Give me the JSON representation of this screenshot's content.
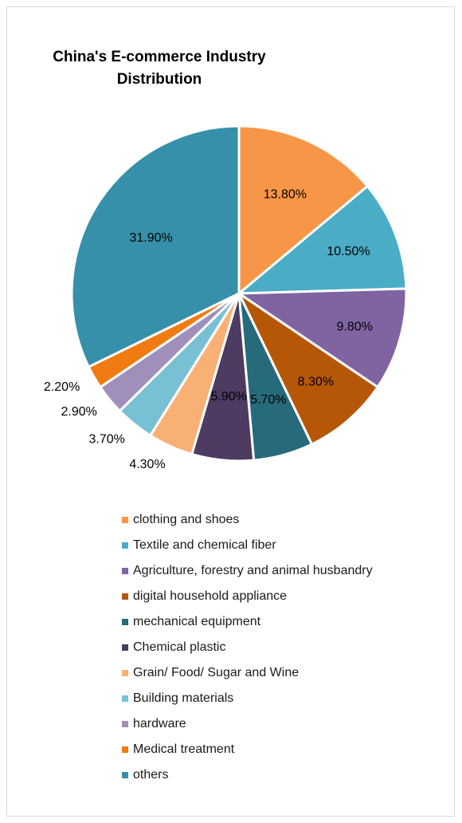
{
  "chart_data": {
    "type": "pie",
    "title": "China's E-commerce Industry Distribution",
    "title_lines": [
      "China's E-commerce Industry",
      "Distribution"
    ],
    "slices": [
      {
        "label": "clothing and shoes",
        "value": 13.8,
        "display": "13.80%",
        "color": "#F79646"
      },
      {
        "label": "Textile and chemical fiber",
        "value": 10.5,
        "display": "10.50%",
        "color": "#4BACC6"
      },
      {
        "label": "Agriculture, forestry and animal husbandry",
        "value": 9.8,
        "display": "9.80%",
        "color": "#8064A2"
      },
      {
        "label": "digital household appliance",
        "value": 8.3,
        "display": "8.30%",
        "color": "#B65708"
      },
      {
        "label": "mechanical equipment",
        "value": 5.7,
        "display": "5.70%",
        "color": "#276A7C"
      },
      {
        "label": "Chemical plastic",
        "value": 5.9,
        "display": "5.90%",
        "color": "#4D3B62"
      },
      {
        "label": "Grain/ Food/ Sugar and Wine",
        "value": 4.3,
        "display": "4.30%",
        "color": "#F9B074"
      },
      {
        "label": "Building materials",
        "value": 3.7,
        "display": "3.70%",
        "color": "#78C0D4"
      },
      {
        "label": "hardware",
        "value": 2.9,
        "display": "2.90%",
        "color": "#A18FBB"
      },
      {
        "label": "Medical treatment",
        "value": 2.2,
        "display": "2.20%",
        "color": "#F07B13"
      },
      {
        "label": "others",
        "value": 31.9,
        "display": "31.90%",
        "color": "#3790A9"
      }
    ],
    "legend_position": "bottom"
  }
}
